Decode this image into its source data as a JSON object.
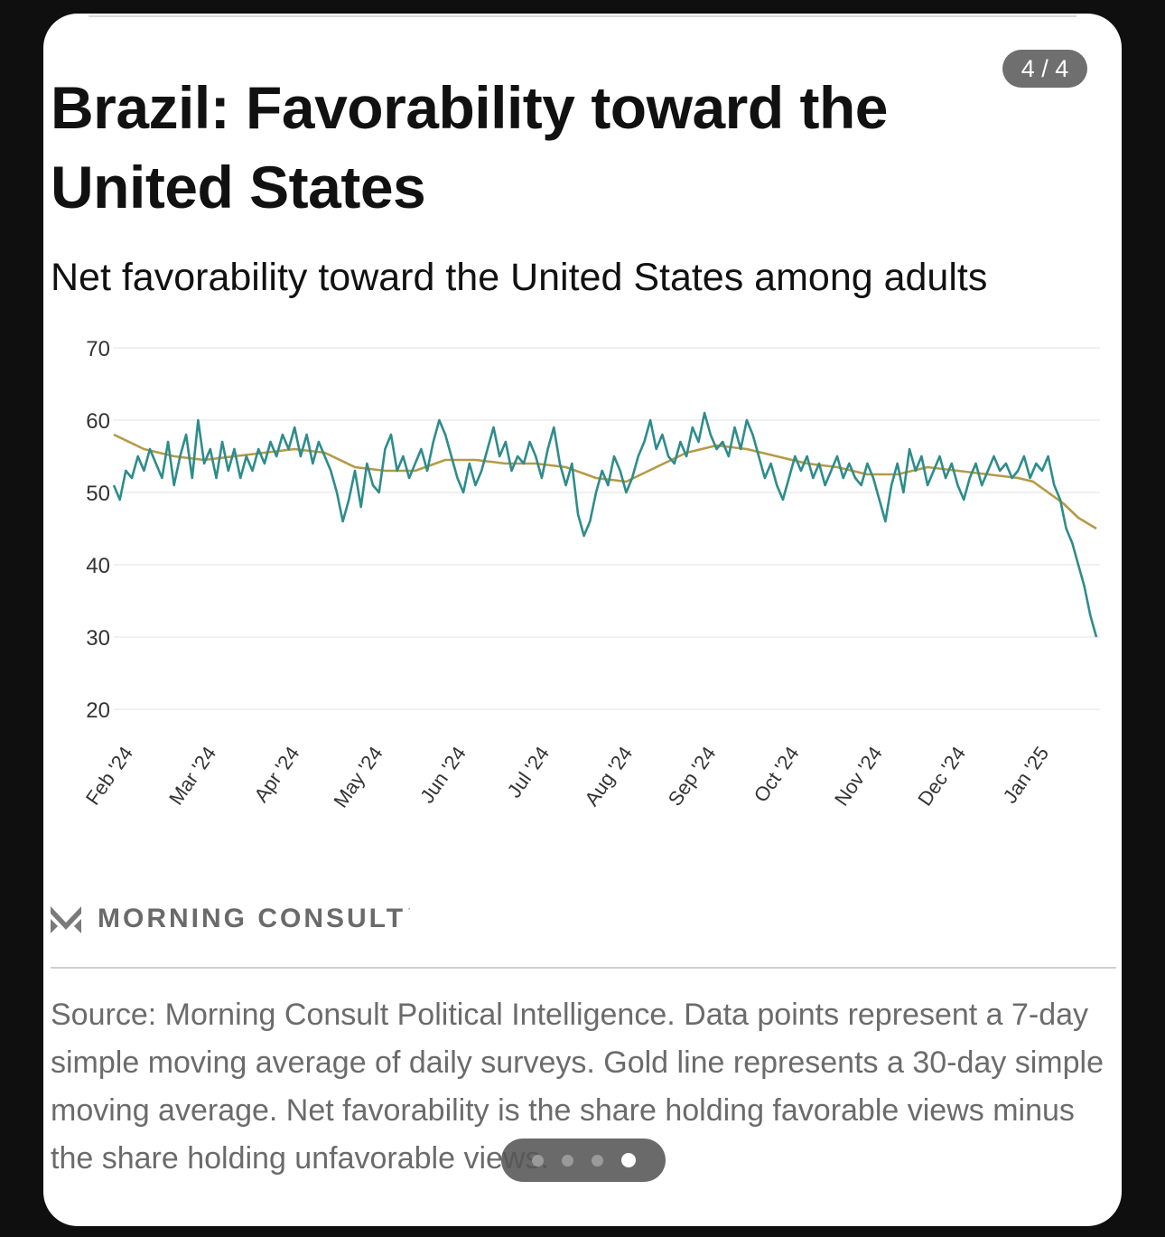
{
  "page_counter": "4 / 4",
  "title": "Brazil: Favorability toward the United States",
  "subtitle": "Net favorability toward the United States among adults",
  "brand": "MORNING CONSULT",
  "brand_mark_char": "·",
  "source_note": "Source: Morning Consult Political Intelligence. Data points represent a 7-day simple moving average of daily surveys. Gold line represents a 30-day simple moving average. Net favorability is the share holding favorable views minus the share holding unfavorable views.",
  "pager": {
    "count": 4,
    "active_index": 3
  },
  "chart_data": {
    "type": "line",
    "title": "Brazil: Favorability toward the United States",
    "subtitle": "Net favorability toward the United States among adults",
    "x_tick_labels": [
      "Feb '24",
      "Mar '24",
      "Apr '24",
      "May '24",
      "Jun '24",
      "Jul '24",
      "Aug '24",
      "Sep '24",
      "Oct '24",
      "Nov '24",
      "Dec '24",
      "Jan '25"
    ],
    "y_tick_labels": [
      "70",
      "60",
      "50",
      "40",
      "30",
      "20"
    ],
    "ylim": [
      20,
      70
    ],
    "y_ticks": [
      70,
      60,
      50,
      40,
      30,
      20
    ],
    "grid": true,
    "x_period": [
      "2024-02-01",
      "2025-01-31"
    ],
    "colors": {
      "daily": "#2e8c8c",
      "avg": "#b59a45",
      "grid": "#ececec"
    },
    "series": [
      {
        "key": "daily",
        "values": [
          [
            0,
            51
          ],
          [
            2,
            49
          ],
          [
            4,
            53
          ],
          [
            6,
            52
          ],
          [
            8,
            55
          ],
          [
            10,
            53
          ],
          [
            12,
            56
          ],
          [
            14,
            54
          ],
          [
            16,
            52
          ],
          [
            18,
            57
          ],
          [
            20,
            51
          ],
          [
            22,
            55
          ],
          [
            24,
            58
          ],
          [
            26,
            52
          ],
          [
            28,
            60
          ],
          [
            30,
            54
          ],
          [
            32,
            56
          ],
          [
            34,
            52
          ],
          [
            36,
            57
          ],
          [
            38,
            53
          ],
          [
            40,
            56
          ],
          [
            42,
            52
          ],
          [
            44,
            55
          ],
          [
            46,
            53
          ],
          [
            48,
            56
          ],
          [
            50,
            54
          ],
          [
            52,
            57
          ],
          [
            54,
            55
          ],
          [
            56,
            58
          ],
          [
            58,
            56
          ],
          [
            60,
            59
          ],
          [
            62,
            55
          ],
          [
            64,
            58
          ],
          [
            66,
            54
          ],
          [
            68,
            57
          ],
          [
            70,
            55
          ],
          [
            72,
            53
          ],
          [
            74,
            50
          ],
          [
            76,
            46
          ],
          [
            78,
            49
          ],
          [
            80,
            53
          ],
          [
            82,
            48
          ],
          [
            84,
            54
          ],
          [
            86,
            51
          ],
          [
            88,
            50
          ],
          [
            90,
            56
          ],
          [
            92,
            58
          ],
          [
            94,
            53
          ],
          [
            96,
            55
          ],
          [
            98,
            52
          ],
          [
            100,
            54
          ],
          [
            102,
            56
          ],
          [
            104,
            53
          ],
          [
            106,
            57
          ],
          [
            108,
            60
          ],
          [
            110,
            58
          ],
          [
            112,
            55
          ],
          [
            114,
            52
          ],
          [
            116,
            50
          ],
          [
            118,
            54
          ],
          [
            120,
            51
          ],
          [
            122,
            53
          ],
          [
            124,
            56
          ],
          [
            126,
            59
          ],
          [
            128,
            55
          ],
          [
            130,
            57
          ],
          [
            132,
            53
          ],
          [
            134,
            55
          ],
          [
            136,
            54
          ],
          [
            138,
            57
          ],
          [
            140,
            55
          ],
          [
            142,
            52
          ],
          [
            144,
            56
          ],
          [
            146,
            59
          ],
          [
            148,
            54
          ],
          [
            150,
            51
          ],
          [
            152,
            54
          ],
          [
            154,
            47
          ],
          [
            156,
            44
          ],
          [
            158,
            46
          ],
          [
            160,
            50
          ],
          [
            162,
            53
          ],
          [
            164,
            51
          ],
          [
            166,
            55
          ],
          [
            168,
            53
          ],
          [
            170,
            50
          ],
          [
            172,
            52
          ],
          [
            174,
            55
          ],
          [
            176,
            57
          ],
          [
            178,
            60
          ],
          [
            180,
            56
          ],
          [
            182,
            58
          ],
          [
            184,
            55
          ],
          [
            186,
            54
          ],
          [
            188,
            57
          ],
          [
            190,
            55
          ],
          [
            192,
            59
          ],
          [
            194,
            57
          ],
          [
            196,
            61
          ],
          [
            198,
            58
          ],
          [
            200,
            56
          ],
          [
            202,
            57
          ],
          [
            204,
            55
          ],
          [
            206,
            59
          ],
          [
            208,
            56
          ],
          [
            210,
            60
          ],
          [
            212,
            58
          ],
          [
            214,
            55
          ],
          [
            216,
            52
          ],
          [
            218,
            54
          ],
          [
            220,
            51
          ],
          [
            222,
            49
          ],
          [
            224,
            52
          ],
          [
            226,
            55
          ],
          [
            228,
            53
          ],
          [
            230,
            55
          ],
          [
            232,
            52
          ],
          [
            234,
            54
          ],
          [
            236,
            51
          ],
          [
            238,
            53
          ],
          [
            240,
            55
          ],
          [
            242,
            52
          ],
          [
            244,
            54
          ],
          [
            246,
            52
          ],
          [
            248,
            51
          ],
          [
            250,
            54
          ],
          [
            252,
            52
          ],
          [
            254,
            49
          ],
          [
            256,
            46
          ],
          [
            258,
            51
          ],
          [
            260,
            54
          ],
          [
            262,
            50
          ],
          [
            264,
            56
          ],
          [
            266,
            53
          ],
          [
            268,
            55
          ],
          [
            270,
            51
          ],
          [
            272,
            53
          ],
          [
            274,
            55
          ],
          [
            276,
            52
          ],
          [
            278,
            54
          ],
          [
            280,
            51
          ],
          [
            282,
            49
          ],
          [
            284,
            52
          ],
          [
            286,
            54
          ],
          [
            288,
            51
          ],
          [
            290,
            53
          ],
          [
            292,
            55
          ],
          [
            294,
            53
          ],
          [
            296,
            54
          ],
          [
            298,
            52
          ],
          [
            300,
            53
          ],
          [
            302,
            55
          ],
          [
            304,
            52
          ],
          [
            306,
            54
          ],
          [
            308,
            53
          ],
          [
            310,
            55
          ],
          [
            312,
            51
          ],
          [
            314,
            49
          ],
          [
            316,
            45
          ],
          [
            318,
            43
          ],
          [
            320,
            40
          ],
          [
            322,
            37
          ],
          [
            324,
            33
          ],
          [
            326,
            30
          ]
        ]
      },
      {
        "key": "avg",
        "values": [
          [
            0,
            58
          ],
          [
            10,
            56
          ],
          [
            20,
            55
          ],
          [
            30,
            54.5
          ],
          [
            40,
            55
          ],
          [
            50,
            55.5
          ],
          [
            60,
            56
          ],
          [
            70,
            55.5
          ],
          [
            80,
            53.5
          ],
          [
            90,
            53
          ],
          [
            100,
            53
          ],
          [
            110,
            54.5
          ],
          [
            120,
            54.5
          ],
          [
            130,
            54
          ],
          [
            140,
            54
          ],
          [
            150,
            53.5
          ],
          [
            160,
            52
          ],
          [
            170,
            51.5
          ],
          [
            180,
            53.5
          ],
          [
            190,
            55.5
          ],
          [
            200,
            56.5
          ],
          [
            210,
            56
          ],
          [
            220,
            55
          ],
          [
            230,
            54
          ],
          [
            240,
            53.5
          ],
          [
            250,
            52.5
          ],
          [
            260,
            52.5
          ],
          [
            270,
            53.5
          ],
          [
            280,
            53
          ],
          [
            290,
            52.5
          ],
          [
            300,
            52
          ],
          [
            305,
            51.5
          ],
          [
            310,
            50
          ],
          [
            315,
            48.5
          ],
          [
            320,
            46.5
          ],
          [
            326,
            45
          ]
        ]
      }
    ]
  }
}
